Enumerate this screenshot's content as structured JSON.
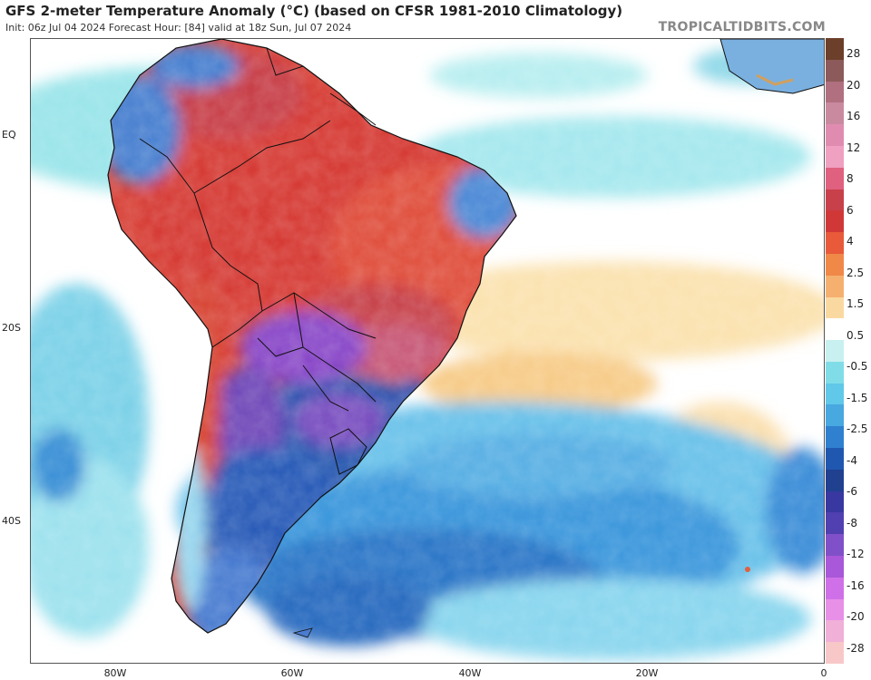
{
  "title": "GFS 2-meter Temperature Anomaly (°C) (based on CFSR 1981-2010 Climatology)",
  "subtitle": "Init: 06z Jul 04 2024   Forecast Hour: [84]   valid at 18z Sun, Jul 07 2024",
  "credit": "TROPICALTIDBITS.COM",
  "lat_labels": [
    "EQ",
    "20S",
    "40S"
  ],
  "lon_labels": [
    "80W",
    "60W",
    "40W",
    "20W",
    "0"
  ],
  "colorbar": {
    "labels": [
      "28",
      "20",
      "16",
      "12",
      "8",
      "6",
      "4",
      "2.5",
      "1.5",
      "0.5",
      "-0.5",
      "-1.5",
      "-2.5",
      "-4",
      "-6",
      "-8",
      "-12",
      "-16",
      "-20",
      "-28"
    ],
    "colors": [
      "#6b3f2a",
      "#8c5a5a",
      "#b07080",
      "#c98aa0",
      "#e08cb0",
      "#f0a0c0",
      "#e06080",
      "#c8404a",
      "#d03838",
      "#e85a3a",
      "#f08848",
      "#f5b070",
      "#fad9a0",
      "#ffffff",
      "#c8f0f0",
      "#80dde8",
      "#60c8e8",
      "#48a8e0",
      "#3080d0",
      "#2058b0",
      "#204090",
      "#3838a0",
      "#5040b0",
      "#8050c8",
      "#a858d8",
      "#d070e8",
      "#e890e8",
      "#f0b0d8",
      "#f8c8c8"
    ]
  }
}
